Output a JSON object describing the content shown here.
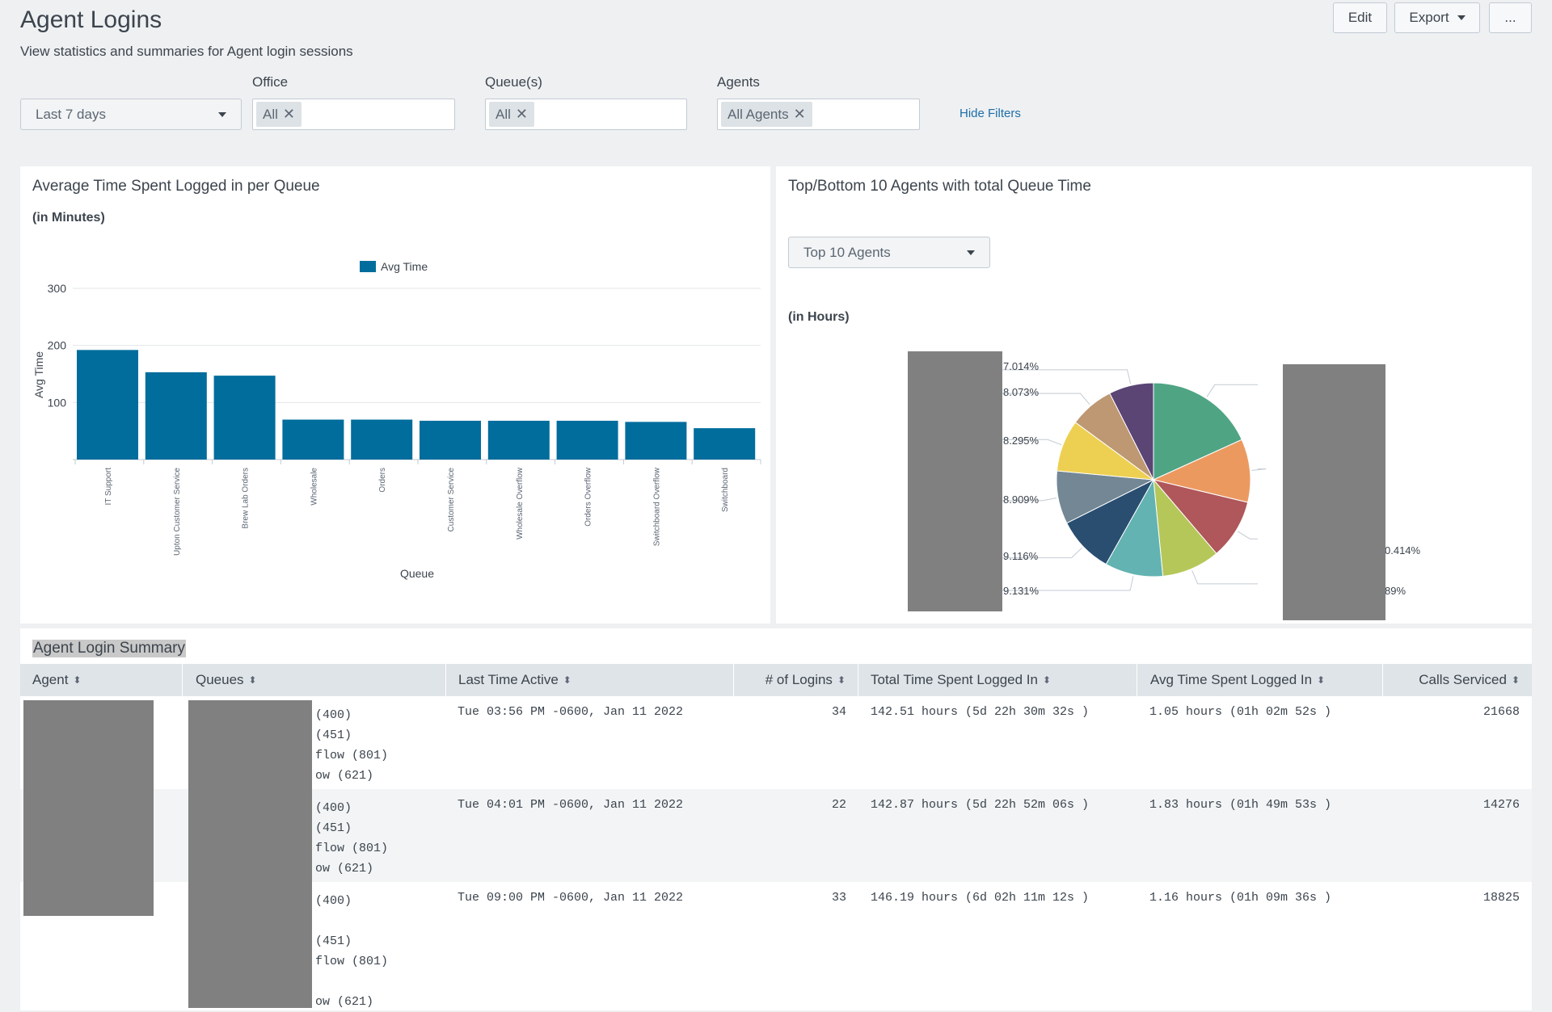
{
  "header": {
    "title": "Agent Logins",
    "description": "View statistics and summaries for Agent login sessions",
    "edit_label": "Edit",
    "export_label": "Export",
    "more_label": "..."
  },
  "filters": {
    "time_range": "Last 7 days",
    "office_label": "Office",
    "office_value": "All",
    "queues_label": "Queue(s)",
    "queues_value": "All",
    "agents_label": "Agents",
    "agents_value": "All Agents",
    "hide_filters": "Hide Filters"
  },
  "bar_panel": {
    "title": "Average Time Spent Logged in per Queue",
    "subtitle": "(in Minutes)"
  },
  "pie_panel": {
    "title": "Top/Bottom 10 Agents with total Queue Time",
    "selector": "Top 10 Agents",
    "subtitle": "(in Hours)",
    "partial_labels": [
      "7.014%",
      "8.073%",
      "8.295%",
      "8.909%",
      "9.116%",
      "9.131%",
      "0.414%",
      "89%"
    ]
  },
  "colors": {
    "bar": "#006d9c",
    "pie": [
      "#4fa484",
      "#ec9960",
      "#af575a",
      "#b6c75a",
      "#62b3b2",
      "#294e70",
      "#738795",
      "#edd051",
      "#bd9872",
      "#5a4575"
    ]
  },
  "chart_data": [
    {
      "type": "bar",
      "legend": [
        "Avg Time"
      ],
      "xlabel": "Queue",
      "ylabel": "Avg Time",
      "ylim": [
        0,
        300
      ],
      "yticks": [
        100,
        200,
        300
      ],
      "categories": [
        "IT Support",
        "Upton Customer Service",
        "Brew Lab Orders",
        "Wholesale",
        "Orders",
        "Customer Service",
        "Wholesale Overflow",
        "Orders Overflow",
        "Switchboard Overflow",
        "Switchboard"
      ],
      "series": [
        {
          "name": "Avg Time",
          "values": [
            192,
            153,
            147,
            70,
            70,
            68,
            68,
            68,
            66,
            55
          ]
        }
      ]
    },
    {
      "type": "pie",
      "values": [
        17.1,
        9.9,
        9.4,
        9.1,
        9.1,
        8.9,
        8.3,
        8.1,
        7.0,
        7.0
      ]
    }
  ],
  "summary": {
    "title": "Agent Login Summary",
    "columns": [
      "Agent",
      "Queues",
      "Last Time Active",
      "# of Logins",
      "Total Time Spent Logged In",
      "Avg Time Spent Logged In",
      "Calls Serviced"
    ],
    "rows": [
      {
        "queues": [
          "(400)",
          "(451)",
          "flow (801)",
          "ow (621)"
        ],
        "last_active": "Tue 03:56 PM -0600, Jan 11 2022",
        "logins": "34",
        "total": "142.51 hours (5d 22h 30m 32s )",
        "avg": "1.05 hours (01h 02m 52s )",
        "calls": "21668"
      },
      {
        "queues": [
          "(400)",
          "(451)",
          "flow (801)",
          "ow (621)"
        ],
        "last_active": "Tue 04:01 PM -0600, Jan 11 2022",
        "logins": "22",
        "total": "142.87 hours (5d 22h 52m 06s )",
        "avg": "1.83 hours (01h 49m 53s )",
        "calls": "14276"
      },
      {
        "queues": [
          "(400)",
          "(451)",
          "flow (801)",
          "ow (621)"
        ],
        "last_active": "Tue 09:00 PM -0600, Jan 11 2022",
        "logins": "33",
        "total": "146.19 hours (6d 02h 11m 12s )",
        "avg": "1.16 hours (01h 09m 36s )",
        "calls": "18825"
      }
    ]
  }
}
